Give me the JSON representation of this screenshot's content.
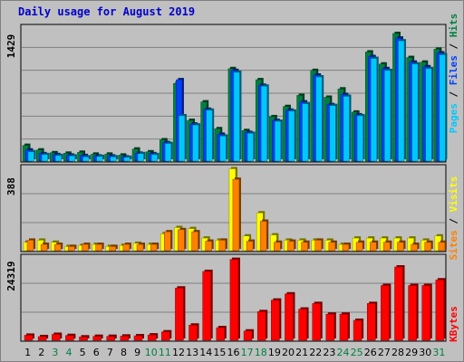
{
  "title": "Daily usage for August 2019",
  "colors": {
    "hits": "#008040",
    "files": "#0040ff",
    "pages": "#00c8ff",
    "visits": "#ffff00",
    "sites": "#ff8000",
    "kbytes": "#ff0000",
    "weekday_label": "#000000",
    "weekend_label": "#008040"
  },
  "chart_data": [
    {
      "type": "bar",
      "title": "Daily usage for August 2019",
      "y_axis_max_label": "1429",
      "legend": [
        "Pages",
        "Files",
        "Hits"
      ],
      "categories": [
        "1",
        "2",
        "3",
        "4",
        "5",
        "6",
        "7",
        "8",
        "9",
        "10",
        "11",
        "12",
        "13",
        "14",
        "15",
        "16",
        "17",
        "18",
        "19",
        "20",
        "21",
        "22",
        "23",
        "24",
        "25",
        "26",
        "27",
        "28",
        "29",
        "30",
        "31"
      ],
      "weekend_days": [
        "3",
        "4",
        "10",
        "11",
        "17",
        "18",
        "24",
        "25",
        "31"
      ],
      "series": [
        {
          "name": "Hits",
          "values": [
            170,
            120,
            90,
            85,
            95,
            75,
            75,
            65,
            130,
            100,
            230,
            840,
            440,
            640,
            350,
            1000,
            330,
            880,
            480,
            590,
            710,
            980,
            690,
            780,
            530,
            1180,
            1050,
            1380,
            1120,
            1070,
            1210
          ]
        },
        {
          "name": "Files",
          "values": [
            120,
            80,
            70,
            65,
            60,
            55,
            55,
            45,
            85,
            80,
            200,
            880,
            400,
            560,
            290,
            980,
            310,
            820,
            440,
            550,
            640,
            930,
            610,
            720,
            500,
            1130,
            1000,
            1330,
            1070,
            1020,
            1170
          ]
        },
        {
          "name": "Pages",
          "values": [
            100,
            70,
            60,
            55,
            45,
            50,
            45,
            40,
            80,
            70,
            190,
            490,
            390,
            550,
            270,
            960,
            300,
            810,
            430,
            540,
            620,
            910,
            600,
            700,
            490,
            1110,
            980,
            1300,
            1050,
            1000,
            1150
          ]
        }
      ]
    },
    {
      "type": "bar",
      "y_axis_max_label": "388",
      "legend": [
        "Sites",
        "Visits"
      ],
      "categories": [
        "1",
        "2",
        "3",
        "4",
        "5",
        "6",
        "7",
        "8",
        "9",
        "10",
        "11",
        "12",
        "13",
        "14",
        "15",
        "16",
        "17",
        "18",
        "19",
        "20",
        "21",
        "22",
        "23",
        "24",
        "25",
        "26",
        "27",
        "28",
        "29",
        "30",
        "31"
      ],
      "series": [
        {
          "name": "Visits",
          "values": [
            40,
            50,
            40,
            20,
            25,
            30,
            20,
            25,
            35,
            30,
            80,
            110,
            105,
            60,
            50,
            390,
            70,
            180,
            75,
            50,
            50,
            50,
            50,
            30,
            60,
            60,
            60,
            60,
            60,
            50,
            70
          ]
        },
        {
          "name": "Sites",
          "values": [
            50,
            30,
            30,
            20,
            30,
            30,
            20,
            30,
            30,
            30,
            90,
            100,
            90,
            45,
            50,
            340,
            45,
            140,
            40,
            45,
            40,
            50,
            40,
            30,
            40,
            40,
            40,
            40,
            30,
            40,
            40
          ]
        }
      ]
    },
    {
      "type": "bar",
      "y_axis_max_label": "24319",
      "legend": [
        "KBytes"
      ],
      "categories": [
        "1",
        "2",
        "3",
        "4",
        "5",
        "6",
        "7",
        "8",
        "9",
        "10",
        "11",
        "12",
        "13",
        "14",
        "15",
        "16",
        "17",
        "18",
        "19",
        "20",
        "21",
        "22",
        "23",
        "24",
        "25",
        "26",
        "27",
        "28",
        "29",
        "30",
        "31"
      ],
      "series": [
        {
          "name": "KBytes",
          "values": [
            1800,
            1300,
            2100,
            1700,
            1200,
            1400,
            1400,
            1500,
            1600,
            1900,
            3000,
            18600,
            5400,
            24500,
            4500,
            28800,
            3300,
            10200,
            14300,
            16500,
            11100,
            13100,
            9300,
            9300,
            7100,
            13100,
            19500,
            26100,
            19500,
            19500,
            21500
          ]
        }
      ]
    }
  ]
}
